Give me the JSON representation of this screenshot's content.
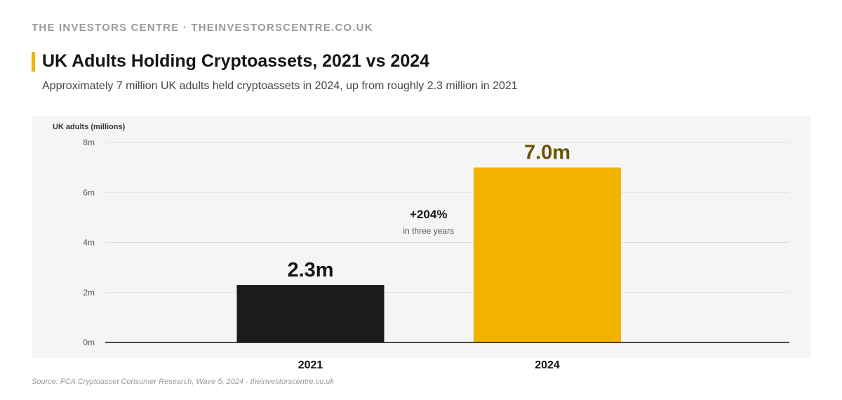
{
  "header": {
    "brand": "THE INVESTORS CENTRE · THEINVESTORSCENTRE.CO.UK",
    "title": "UK Adults Holding Cryptoassets, 2021 vs 2024",
    "subtitle": "Approximately 7 million UK adults held cryptoassets in 2024, up from roughly 2.3 million in 2021"
  },
  "footer": {
    "source": "Source: FCA Cryptoasset Consumer Research, Wave 5, 2024 · theinvestorscentre.co.uk"
  },
  "colors": {
    "accent": "#f2b300",
    "bar_2021": "#1b1b1b",
    "bar_2024": "#f2b300",
    "label_2024": "#6b5200",
    "panel_background": "#f5f5f5"
  },
  "chart_data": {
    "type": "bar",
    "ylabel": "UK adults (millions)",
    "categories": [
      "2021",
      "2024"
    ],
    "values": [
      2.3,
      7.0
    ],
    "data_labels": [
      "2.3m",
      "7.0m"
    ],
    "ylim": [
      0,
      8
    ],
    "yticks": [
      0,
      2,
      4,
      6,
      8
    ],
    "ytick_labels": [
      "0m",
      "2m",
      "4m",
      "6m",
      "8m"
    ],
    "grid": true,
    "annotation": {
      "main": "+204%",
      "sub": "in three years"
    }
  }
}
